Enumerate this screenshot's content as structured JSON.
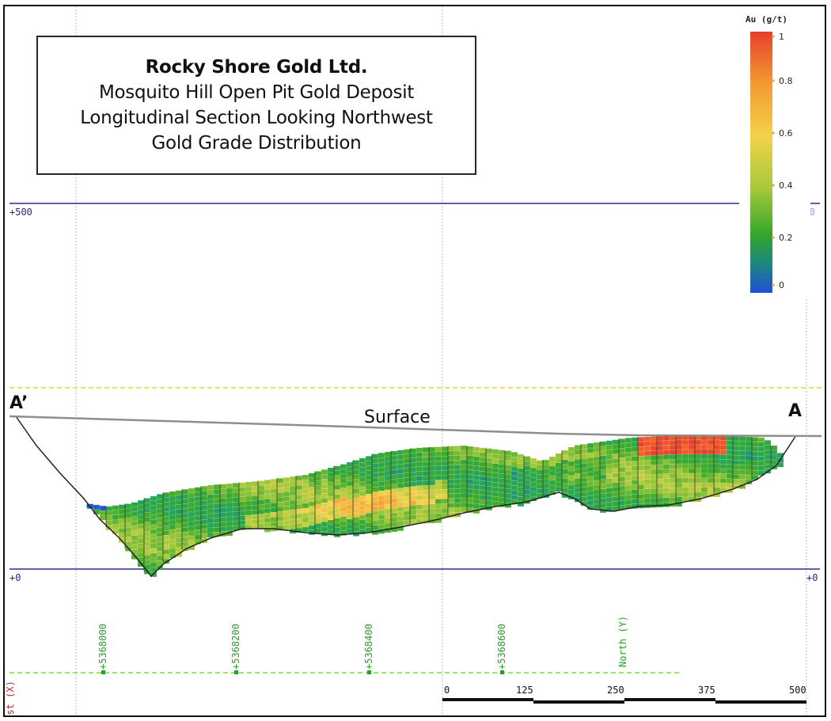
{
  "title_box": {
    "company": "Rocky Shore Gold Ltd.",
    "line2": "Mosquito Hill Open Pit Gold Deposit",
    "line3": "Longitudinal Section Looking Northwest",
    "line4": "Gold Grade Distribution"
  },
  "chart_data": {
    "type": "section",
    "title": "Rocky Shore Gold Ltd. — Mosquito Hill Open Pit Gold Deposit — Longitudinal Section Looking Northwest — Gold Grade Distribution",
    "elevation_levels": [
      {
        "value": 500,
        "label": "+500"
      },
      {
        "value": 0,
        "label": "+0"
      }
    ],
    "northing_ticks": [
      {
        "value": 5368000,
        "label": "+5368000"
      },
      {
        "value": 5368200,
        "label": "+5368200"
      },
      {
        "value": 5368400,
        "label": "+5368400"
      },
      {
        "value": 5368600,
        "label": "+5368600"
      }
    ],
    "axis_name": "North (Y)",
    "clipped_axis_fragment": "East (X)",
    "section_ends": {
      "left": "A’",
      "right": "A"
    },
    "surface_label": "Surface",
    "scale_bar": {
      "units": "m",
      "labels": [
        "0",
        "125",
        "250",
        "375",
        "500"
      ]
    },
    "color_legend": {
      "title": "Au (g/t)",
      "range": [
        0,
        1
      ],
      "ticks": [
        {
          "value": 1,
          "label": "1"
        },
        {
          "value": 0.8,
          "label": "0.8"
        },
        {
          "value": 0.6,
          "label": "0.6"
        },
        {
          "value": 0.4,
          "label": "0.4"
        },
        {
          "value": 0.2,
          "label": "0.2"
        },
        {
          "value": 0,
          "label": "0"
        }
      ],
      "colors": [
        "#1f4fd8",
        "#25a55a",
        "#3daa2a",
        "#a6c93a",
        "#f4d24a",
        "#f39a32",
        "#f0622a",
        "#e6402b"
      ]
    },
    "grade_summary": "block model grades mostly 0.2-0.5 g/t; highest grades (~1 g/t) at shallow depth near section end A"
  }
}
